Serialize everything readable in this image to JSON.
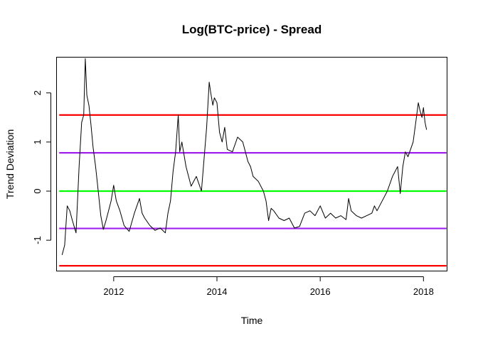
{
  "chart_data": {
    "type": "line",
    "title": "Log(BTC-price) - Spread",
    "xlabel": "Time",
    "ylabel": "Trend Deviation",
    "xlim": [
      2010.9,
      2018.45
    ],
    "ylim": [
      -1.62,
      2.72
    ],
    "x_ticks": [
      2012,
      2014,
      2016,
      2018
    ],
    "x_tick_labels": [
      "2012",
      "2014",
      "2016",
      "2018"
    ],
    "y_ticks": [
      -1,
      0,
      1,
      2
    ],
    "y_tick_labels": [
      "-1",
      "0",
      "1",
      "2"
    ],
    "grid": false,
    "legend": "none",
    "reference_lines": [
      {
        "y": 1.55,
        "color": "#ff0000"
      },
      {
        "y": 0.78,
        "color": "#a020f0"
      },
      {
        "y": 0.0,
        "color": "#00ff00"
      },
      {
        "y": -0.76,
        "color": "#a020f0"
      },
      {
        "y": -1.52,
        "color": "#ff0000"
      }
    ],
    "series": [
      {
        "color": "#000000",
        "x": [
          2011.0,
          2011.05,
          2011.1,
          2011.15,
          2011.2,
          2011.27,
          2011.33,
          2011.38,
          2011.42,
          2011.45,
          2011.48,
          2011.52,
          2011.56,
          2011.6,
          2011.65,
          2011.7,
          2011.75,
          2011.8,
          2011.85,
          2011.9,
          2011.95,
          2012.0,
          2012.05,
          2012.12,
          2012.2,
          2012.3,
          2012.4,
          2012.5,
          2012.55,
          2012.6,
          2012.7,
          2012.8,
          2012.9,
          2013.0,
          2013.05,
          2013.1,
          2013.15,
          2013.2,
          2013.25,
          2013.28,
          2013.32,
          2013.4,
          2013.5,
          2013.6,
          2013.7,
          2013.8,
          2013.85,
          2013.88,
          2013.92,
          2013.95,
          2014.0,
          2014.05,
          2014.1,
          2014.15,
          2014.2,
          2014.3,
          2014.4,
          2014.5,
          2014.6,
          2014.65,
          2014.7,
          2014.8,
          2014.9,
          2014.95,
          2015.0,
          2015.05,
          2015.1,
          2015.2,
          2015.3,
          2015.4,
          2015.5,
          2015.6,
          2015.7,
          2015.8,
          2015.9,
          2016.0,
          2016.1,
          2016.2,
          2016.3,
          2016.4,
          2016.5,
          2016.55,
          2016.6,
          2016.7,
          2016.8,
          2016.9,
          2017.0,
          2017.05,
          2017.1,
          2017.2,
          2017.3,
          2017.4,
          2017.5,
          2017.55,
          2017.6,
          2017.65,
          2017.7,
          2017.8,
          2017.85,
          2017.9,
          2017.93,
          2017.97,
          2018.0,
          2018.03,
          2018.06
        ],
        "y": [
          -1.3,
          -1.1,
          -0.3,
          -0.4,
          -0.6,
          -0.85,
          0.5,
          1.4,
          1.55,
          2.7,
          1.95,
          1.75,
          1.35,
          0.9,
          0.5,
          0.0,
          -0.5,
          -0.78,
          -0.6,
          -0.4,
          -0.2,
          0.12,
          -0.2,
          -0.4,
          -0.7,
          -0.82,
          -0.45,
          -0.15,
          -0.45,
          -0.55,
          -0.7,
          -0.8,
          -0.75,
          -0.85,
          -0.45,
          -0.2,
          0.4,
          0.8,
          1.55,
          0.8,
          1.0,
          0.5,
          0.1,
          0.3,
          0.0,
          1.3,
          2.22,
          2.0,
          1.75,
          1.9,
          1.8,
          1.2,
          1.0,
          1.3,
          0.85,
          0.8,
          1.1,
          1.0,
          0.6,
          0.5,
          0.3,
          0.2,
          0.0,
          -0.2,
          -0.6,
          -0.35,
          -0.4,
          -0.55,
          -0.6,
          -0.55,
          -0.75,
          -0.72,
          -0.45,
          -0.4,
          -0.5,
          -0.3,
          -0.55,
          -0.45,
          -0.55,
          -0.5,
          -0.58,
          -0.15,
          -0.4,
          -0.5,
          -0.55,
          -0.5,
          -0.45,
          -0.3,
          -0.4,
          -0.2,
          0.0,
          0.3,
          0.5,
          -0.05,
          0.5,
          0.8,
          0.7,
          1.0,
          1.4,
          1.8,
          1.65,
          1.5,
          1.7,
          1.4,
          1.25
        ]
      }
    ]
  }
}
